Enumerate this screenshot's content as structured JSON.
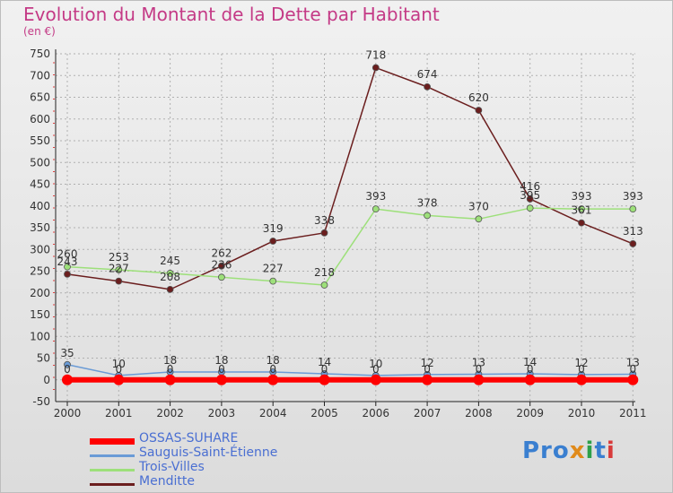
{
  "title": "Evolution du Montant de la Dette par Habitant",
  "subtitle": "(en €)",
  "logo": "Proxiti",
  "colors": {
    "title": "#c43a86",
    "legend_text": "#4a6fd2",
    "grid": "#b0b0b0",
    "axis": "#222222"
  },
  "chart_data": {
    "type": "line",
    "x": [
      "2000",
      "2001",
      "2002",
      "2003",
      "2004",
      "2005",
      "2006",
      "2007",
      "2008",
      "2009",
      "2010",
      "2011"
    ],
    "ylim": [
      -50,
      750
    ],
    "yticks": [
      -50,
      0,
      50,
      100,
      150,
      200,
      250,
      300,
      350,
      400,
      450,
      500,
      550,
      600,
      650,
      700,
      750
    ],
    "grid": true,
    "legend_position": "bottom-left",
    "series": [
      {
        "name": "OSSAS-SUHARE",
        "color": "#ff0000",
        "values": [
          0,
          0,
          0,
          0,
          0,
          0,
          0,
          0,
          0,
          0,
          0,
          0
        ]
      },
      {
        "name": "Sauguis-Saint-Étienne",
        "color": "#6a9bd6",
        "values": [
          35,
          10,
          18,
          18,
          18,
          14,
          10,
          12,
          13,
          14,
          12,
          13
        ]
      },
      {
        "name": "Trois-Villes",
        "color": "#9de07a",
        "values": [
          260,
          253,
          245,
          236,
          227,
          218,
          393,
          378,
          370,
          395,
          393,
          393
        ]
      },
      {
        "name": "Menditte",
        "color": "#6b1e1e",
        "values": [
          243,
          227,
          208,
          262,
          319,
          338,
          718,
          674,
          620,
          416,
          361,
          313
        ]
      }
    ]
  }
}
